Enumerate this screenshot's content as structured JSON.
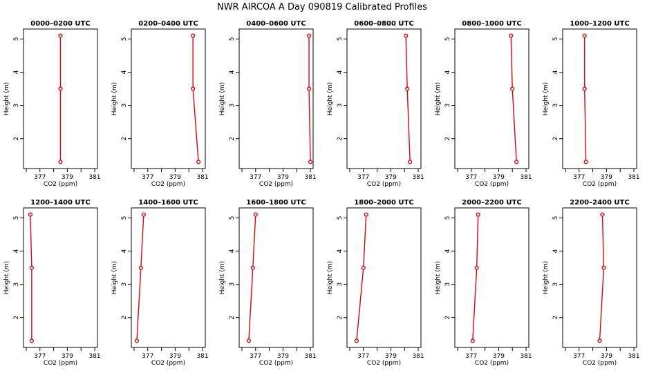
{
  "title": "NWR AIRCOA A  Day 090819  Calibrated Profiles",
  "chart_data": {
    "type": "line",
    "xlabel": "CO2 (ppm)",
    "ylabel": "Height (m)",
    "xlim": [
      375.8,
      381.2
    ],
    "ylim": [
      1.1,
      5.3
    ],
    "xticks": [
      377,
      379,
      381
    ],
    "yticks": [
      2,
      3,
      4,
      5
    ],
    "line_color": "#e8000b",
    "panels": [
      {
        "title": "0000–0200 UTC",
        "points": [
          {
            "co2": 378.5,
            "h": 1.3
          },
          {
            "co2": 378.5,
            "h": 3.5
          },
          {
            "co2": 378.5,
            "h": 5.1
          }
        ]
      },
      {
        "title": "0200–0400 UTC",
        "points": [
          {
            "co2": 380.7,
            "h": 1.3
          },
          {
            "co2": 380.3,
            "h": 3.5
          },
          {
            "co2": 380.3,
            "h": 5.1
          }
        ]
      },
      {
        "title": "0400–0600 UTC",
        "points": [
          {
            "co2": 381.0,
            "h": 1.3
          },
          {
            "co2": 380.9,
            "h": 3.5
          },
          {
            "co2": 380.9,
            "h": 5.1
          }
        ]
      },
      {
        "title": "0600–0800 UTC",
        "points": [
          {
            "co2": 380.4,
            "h": 1.3
          },
          {
            "co2": 380.2,
            "h": 3.5
          },
          {
            "co2": 380.1,
            "h": 5.1
          }
        ]
      },
      {
        "title": "0800–1000 UTC",
        "points": [
          {
            "co2": 380.3,
            "h": 1.3
          },
          {
            "co2": 380.0,
            "h": 3.5
          },
          {
            "co2": 379.9,
            "h": 5.1
          }
        ]
      },
      {
        "title": "1000–1200 UTC",
        "points": [
          {
            "co2": 377.5,
            "h": 1.3
          },
          {
            "co2": 377.4,
            "h": 3.5
          },
          {
            "co2": 377.4,
            "h": 5.1
          }
        ]
      },
      {
        "title": "1200–1400 UTC",
        "points": [
          {
            "co2": 376.4,
            "h": 1.3
          },
          {
            "co2": 376.4,
            "h": 3.5
          },
          {
            "co2": 376.3,
            "h": 5.1
          }
        ]
      },
      {
        "title": "1400–1600 UTC",
        "points": [
          {
            "co2": 376.2,
            "h": 1.3
          },
          {
            "co2": 376.5,
            "h": 3.5
          },
          {
            "co2": 376.7,
            "h": 5.1
          }
        ]
      },
      {
        "title": "1600–1800 UTC",
        "points": [
          {
            "co2": 376.5,
            "h": 1.3
          },
          {
            "co2": 376.8,
            "h": 3.5
          },
          {
            "co2": 377.0,
            "h": 5.1
          }
        ]
      },
      {
        "title": "1800–2000 UTC",
        "points": [
          {
            "co2": 376.5,
            "h": 1.3
          },
          {
            "co2": 377.0,
            "h": 3.5
          },
          {
            "co2": 377.2,
            "h": 5.1
          }
        ]
      },
      {
        "title": "2000–2200 UTC",
        "points": [
          {
            "co2": 377.1,
            "h": 1.3
          },
          {
            "co2": 377.4,
            "h": 3.5
          },
          {
            "co2": 377.5,
            "h": 5.1
          }
        ]
      },
      {
        "title": "2200–2400 UTC",
        "points": [
          {
            "co2": 378.5,
            "h": 1.3
          },
          {
            "co2": 378.8,
            "h": 3.5
          },
          {
            "co2": 378.7,
            "h": 5.1
          }
        ]
      }
    ]
  }
}
